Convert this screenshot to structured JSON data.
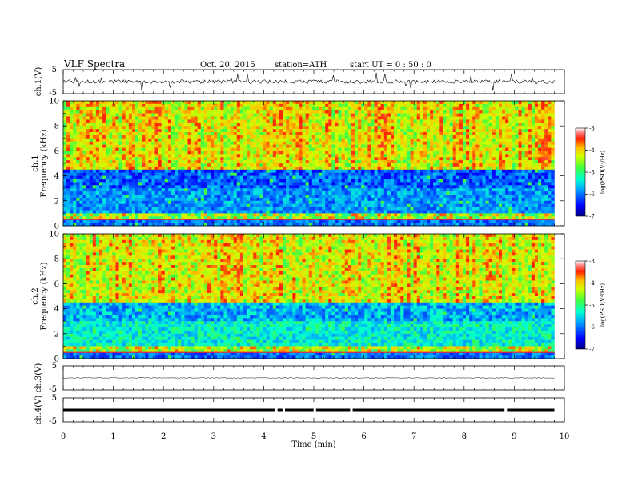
{
  "header": {
    "title": "VLF  Spectra",
    "date": "Oct. 20, 2015",
    "station": "station=ATH",
    "start": "start  UT =   0 : 50 : 0"
  },
  "chart_data": [
    {
      "type": "line",
      "name": "ch1-waveform",
      "ylabel": "ch.1(V)",
      "ylim": [
        -5,
        5
      ],
      "yticks": [
        "5",
        "-5"
      ],
      "x_range_min": [
        0,
        9.8
      ],
      "baseline_volts": 0,
      "noise_amplitude_volts": 0.8
    },
    {
      "type": "heatmap",
      "name": "ch1-spectrogram",
      "ylabel_top": "ch.1",
      "ylabel": "Frequency  (kHz)",
      "ylim": [
        0,
        10
      ],
      "yticks": [
        "0",
        "2",
        "4",
        "6",
        "8",
        "10"
      ],
      "x_range_min": [
        0,
        9.8
      ],
      "colorbar": {
        "label": "log(PSD(V²/Hz)",
        "range": [
          -7,
          -3
        ],
        "ticks": [
          "-3",
          "-4",
          "-5",
          "-6",
          "-7"
        ]
      }
    },
    {
      "type": "heatmap",
      "name": "ch2-spectrogram",
      "ylabel_top": "ch.2",
      "ylabel": "Frequency  (kHz)",
      "ylim": [
        0,
        10
      ],
      "yticks": [
        "0",
        "2",
        "4",
        "6",
        "8",
        "10"
      ],
      "x_range_min": [
        0,
        9.8
      ],
      "colorbar": {
        "label": "log(PSD(V²/Hz)",
        "range": [
          -7,
          -3
        ],
        "ticks": [
          "-3",
          "-4",
          "-5",
          "-6",
          "-7"
        ]
      }
    },
    {
      "type": "line",
      "name": "ch3-waveform",
      "ylabel": "ch.3(V)",
      "ylim": [
        -5,
        5
      ],
      "yticks": [
        "5",
        "-5"
      ],
      "x_range_min": [
        0,
        9.8
      ],
      "baseline_volts": 0,
      "noise_amplitude_volts": 0.15
    },
    {
      "type": "line",
      "name": "ch4-waveform",
      "ylabel": "ch.4(V)",
      "ylim": [
        -5,
        5
      ],
      "yticks": [
        "5",
        "-5"
      ],
      "x_range_min": [
        0,
        9.8
      ],
      "baseline_volts": 0,
      "noise_amplitude_volts": 0.5,
      "gaps_min": [
        4.25,
        4.4,
        5.02,
        5.75,
        8.83
      ]
    }
  ],
  "x_axis": {
    "label": "Time  (min)",
    "range": [
      0,
      10
    ],
    "ticks": [
      "0",
      "1",
      "2",
      "3",
      "4",
      "5",
      "6",
      "7",
      "8",
      "9",
      "10"
    ]
  }
}
